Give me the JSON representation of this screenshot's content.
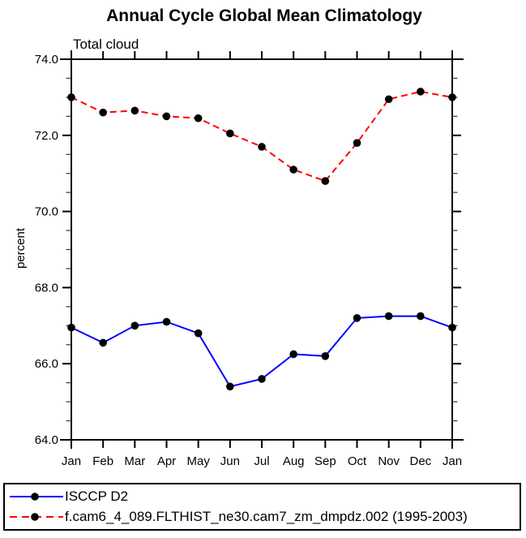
{
  "chart_data": {
    "type": "line",
    "title": "Annual Cycle Global Mean Climatology",
    "subtitle": "Total cloud",
    "ylabel": "percent",
    "x_categories": [
      "Jan",
      "Feb",
      "Mar",
      "Apr",
      "May",
      "Jun",
      "Jul",
      "Aug",
      "Sep",
      "Oct",
      "Nov",
      "Dec",
      "Jan"
    ],
    "ylim": [
      64.0,
      74.0
    ],
    "y_major_tick_step": 2.0,
    "y_minor_tick_step": 0.5,
    "y_tick_labels": [
      "74.0",
      "72.0",
      "70.0",
      "68.0",
      "66.0",
      "64.0"
    ],
    "y_tick_values": [
      74.0,
      72.0,
      70.0,
      68.0,
      66.0,
      64.0
    ],
    "grid": false,
    "legend_position": "bottom",
    "marker": "filled-circle",
    "marker_color": "#000000",
    "series": [
      {
        "name": "ISCCP D2",
        "color": "#0000ff",
        "line_style": "solid",
        "values": [
          66.95,
          66.55,
          67.0,
          67.1,
          66.8,
          65.4,
          65.6,
          66.25,
          66.2,
          67.2,
          67.25,
          67.25,
          66.95
        ]
      },
      {
        "name": "f.cam6_4_089.FLTHIST_ne30.cam7_zm_dmpdz.002 (1995-2003)",
        "color": "#ff0000",
        "line_style": "dashed",
        "values": [
          73.0,
          72.6,
          72.65,
          72.5,
          72.45,
          72.05,
          71.7,
          71.1,
          70.8,
          71.8,
          72.95,
          73.15,
          73.0
        ]
      }
    ]
  }
}
